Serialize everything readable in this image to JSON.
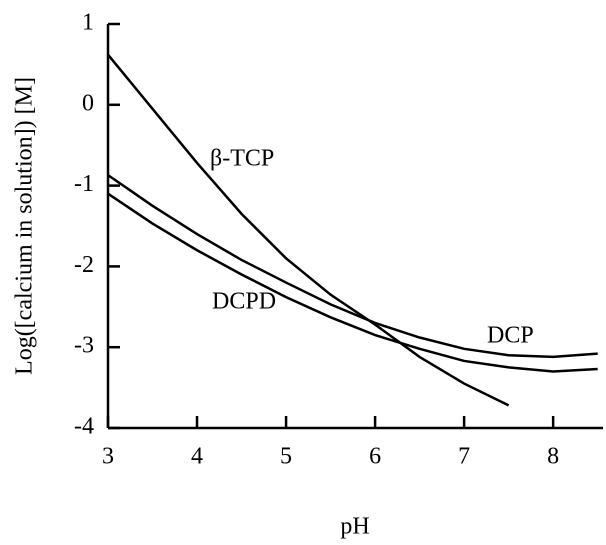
{
  "chart_data": {
    "type": "line",
    "x_label": "pH",
    "y_label": "Log([calcium in solution]) [M]",
    "xlim": [
      3,
      8.56
    ],
    "ylim": [
      -4,
      1
    ],
    "xticks": [
      3,
      4,
      5,
      6,
      7,
      8
    ],
    "yticks": [
      -4,
      -3,
      -2,
      -1,
      0,
      1
    ],
    "series": [
      {
        "name": "β-TCP",
        "color": "#000000",
        "x": [
          3,
          3.5,
          4,
          4.5,
          5,
          5.5,
          6,
          6.5,
          7,
          7.5
        ],
        "values": [
          0.62,
          -0.05,
          -0.72,
          -1.35,
          -1.9,
          -2.35,
          -2.72,
          -3.12,
          -3.45,
          -3.72
        ]
      },
      {
        "name": "DCPD",
        "color": "#000000",
        "x": [
          3,
          3.5,
          4,
          4.5,
          5,
          5.5,
          6,
          6.5,
          7,
          7.5,
          8,
          8.5
        ],
        "values": [
          -0.87,
          -1.25,
          -1.6,
          -1.92,
          -2.2,
          -2.47,
          -2.7,
          -2.88,
          -3.02,
          -3.1,
          -3.12,
          -3.08
        ]
      },
      {
        "name": "DCP",
        "color": "#000000",
        "x": [
          3,
          3.5,
          4,
          4.5,
          5,
          5.5,
          6,
          6.5,
          7,
          7.5,
          8,
          8.5
        ],
        "values": [
          -1.1,
          -1.47,
          -1.8,
          -2.1,
          -2.38,
          -2.63,
          -2.85,
          -3.02,
          -3.17,
          -3.25,
          -3.3,
          -3.27
        ]
      }
    ]
  }
}
